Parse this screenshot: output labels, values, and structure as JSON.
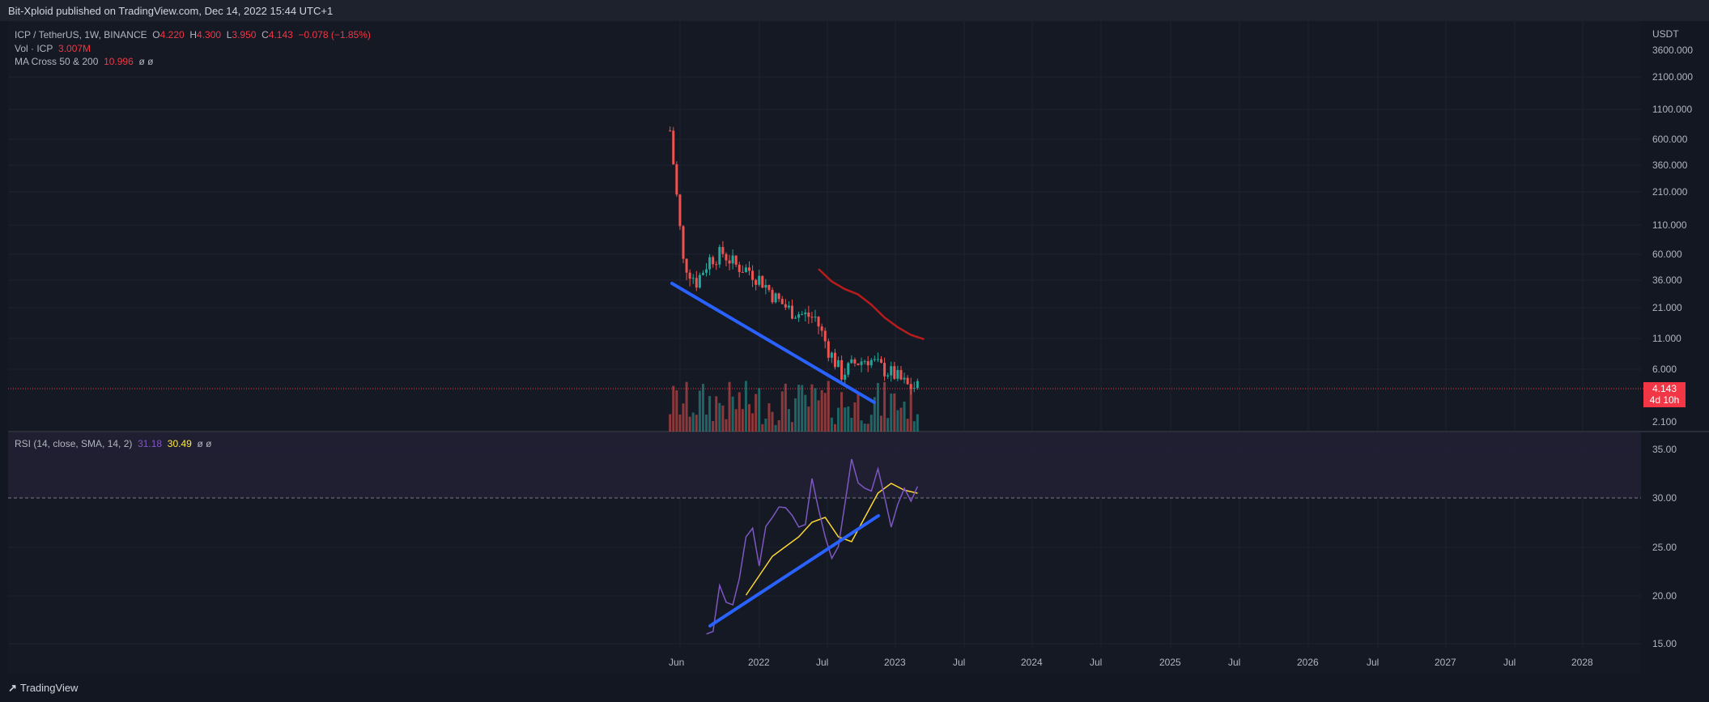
{
  "header": {
    "publish_line": "Bit-Xploid published on TradingView.com, Dec 14, 2022 15:44 UTC+1"
  },
  "legend": {
    "symbol": "ICP / TetherUS, 1W, BINANCE",
    "o_label": "O",
    "o": "4.220",
    "h_label": "H",
    "h": "4.300",
    "l_label": "L",
    "l": "3.950",
    "c_label": "C",
    "c": "4.143",
    "change": "−0.078 (−1.85%)",
    "vol_label": "Vol · ICP",
    "vol": "3.007M",
    "ma_label": "MA Cross 50 & 200",
    "ma_value": "10.996",
    "ma_empty": "ø ø",
    "rsi_label": "RSI (14, close, SMA, 14, 2)",
    "rsi": "31.18",
    "rsi_sma": "30.49",
    "rsi_empty": "ø ø"
  },
  "price_axis": {
    "unit": "USDT",
    "ticks": [
      "3600.000",
      "2100.000",
      "1100.000",
      "600.000",
      "360.000",
      "210.000",
      "110.000",
      "60.000",
      "36.000",
      "21.000",
      "11.000",
      "6.000",
      "2.100"
    ],
    "current_price": "4.143",
    "countdown": "4d 10h"
  },
  "rsi_axis": {
    "ticks": [
      "35.00",
      "30.00",
      "25.00",
      "20.00",
      "15.00"
    ]
  },
  "time_axis": {
    "ticks": [
      "Jun",
      "2022",
      "Jul",
      "2023",
      "Jul",
      "2024",
      "Jul",
      "2025",
      "Jul",
      "2026",
      "Jul",
      "2027",
      "Jul",
      "2028"
    ]
  },
  "footer": {
    "brand": "TradingView"
  },
  "colors": {
    "up": "#26a69a",
    "down": "#ef5350",
    "ma": "#b71c1c",
    "trendline": "#2962ff",
    "rsi": "#7e57c2",
    "rsi_sma": "#fdd835",
    "background": "#131722"
  },
  "chart_data": [
    {
      "type": "line",
      "title": "ICP / TetherUS, 1W, BINANCE",
      "y_scale": "log",
      "ylim": [
        2.1,
        3600
      ],
      "series": [
        {
          "name": "Close",
          "x": [
            "2021-05",
            "2021-06",
            "2021-07",
            "2021-08",
            "2021-09",
            "2021-10",
            "2021-11",
            "2021-12",
            "2022-01",
            "2022-02",
            "2022-03",
            "2022-04",
            "2022-05",
            "2022-06",
            "2022-07",
            "2022-08",
            "2022-09",
            "2022-10",
            "2022-11",
            "2022-12"
          ],
          "values": [
            720,
            52,
            35,
            55,
            62,
            48,
            44,
            35,
            25,
            20,
            18,
            17,
            9,
            5.5,
            6.8,
            7.5,
            6.2,
            5.4,
            4.3,
            4.143
          ]
        },
        {
          "name": "MA Cross 50 & 200",
          "x": [
            "2022-04",
            "2022-05",
            "2022-06",
            "2022-07",
            "2022-08",
            "2022-09",
            "2022-10",
            "2022-11",
            "2022-12"
          ],
          "values": [
            45,
            35,
            30,
            27,
            22,
            17,
            14,
            12,
            10.996
          ]
        }
      ]
    },
    {
      "type": "line",
      "title": "RSI (14, close, SMA, 14, 2)",
      "ylim": [
        15,
        35
      ],
      "series": [
        {
          "name": "RSI",
          "x": [
            "2021-08",
            "2021-09",
            "2021-10",
            "2021-11",
            "2021-12",
            "2022-01",
            "2022-02",
            "2022-03",
            "2022-04",
            "2022-05",
            "2022-06",
            "2022-07",
            "2022-08",
            "2022-09",
            "2022-10",
            "2022-11",
            "2022-12"
          ],
          "values": [
            16,
            21,
            19,
            26,
            23,
            28,
            29,
            27,
            32,
            26,
            25,
            34,
            31,
            33,
            27,
            31,
            31.18
          ]
        },
        {
          "name": "RSI SMA",
          "x": [
            "2021-11",
            "2021-12",
            "2022-01",
            "2022-02",
            "2022-03",
            "2022-04",
            "2022-05",
            "2022-06",
            "2022-07",
            "2022-08",
            "2022-09",
            "2022-10",
            "2022-11",
            "2022-12"
          ],
          "values": [
            20,
            22,
            24,
            25,
            26,
            27.5,
            28,
            26,
            25.5,
            28,
            30.5,
            31.5,
            30.8,
            30.49
          ]
        }
      ]
    }
  ]
}
